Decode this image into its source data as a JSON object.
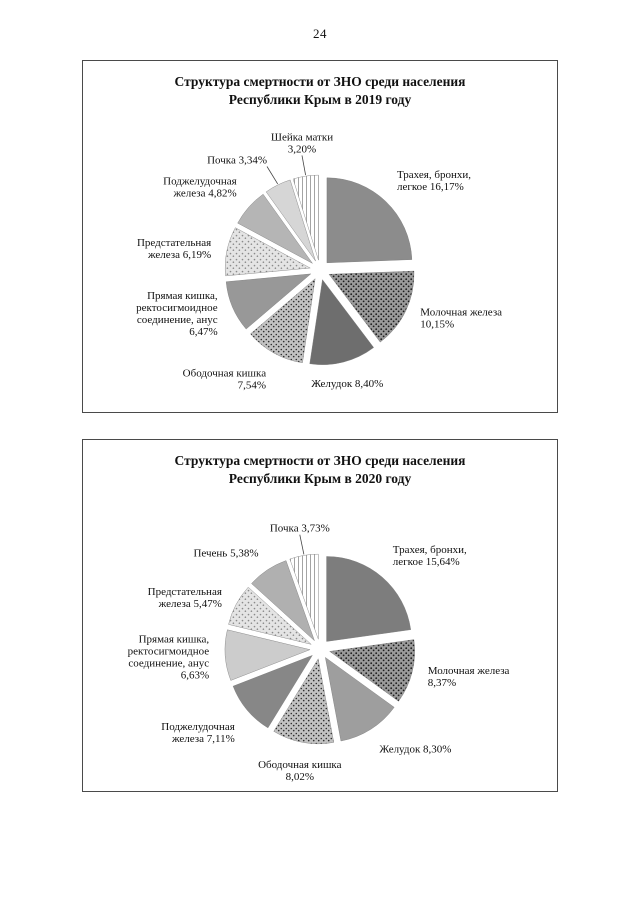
{
  "page": {
    "number": "24"
  },
  "chart_data": [
    {
      "type": "pie",
      "title": "Структура смертности от ЗНО среди населения Республики Крым в 2019 году",
      "title_lines": [
        "Структура смертности от ЗНО среди населения",
        "Республики Крым в 2019 году"
      ],
      "layout": {
        "start_angle_deg": 0,
        "clockwise": true,
        "exploded": true,
        "labels": "outside",
        "legend": "none",
        "values_are_percent": true
      },
      "slices": [
        {
          "name": "Трахея, бронхи, легкое",
          "value": 16.17,
          "percent_label": "16,17%",
          "label_lines": [
            "Трахея, бронхи,",
            "легкое 16,17%"
          ],
          "fill": "#8c8c8c"
        },
        {
          "name": "Молочная железа",
          "value": 10.15,
          "percent_label": "10,15%",
          "label_lines": [
            "Молочная железа",
            "10,15%"
          ],
          "fill": "pattern:speckle-dark"
        },
        {
          "name": "Желудок",
          "value": 8.4,
          "percent_label": "8,40%",
          "label_lines": [
            "Желудок 8,40%"
          ],
          "fill": "#6e6e6e"
        },
        {
          "name": "Ободочная кишка",
          "value": 7.54,
          "percent_label": "7,54%",
          "label_lines": [
            "Ободочная кишка",
            "7,54%"
          ],
          "fill": "pattern:speckle-med"
        },
        {
          "name": "Прямая кишка, ректосигмоидное соединение, анус",
          "value": 6.47,
          "percent_label": "6,47%",
          "label_lines": [
            "Прямая кишка,",
            "ректосигмоидное",
            "соединение, анус",
            "6,47%"
          ],
          "fill": "#989898"
        },
        {
          "name": "Предстательная железа",
          "value": 6.19,
          "percent_label": "6,19%",
          "label_lines": [
            "Предстательная",
            "железа 6,19%"
          ],
          "fill": "pattern:speckle-light"
        },
        {
          "name": "Поджелудочная железа",
          "value": 4.82,
          "percent_label": "4,82%",
          "label_lines": [
            "Поджелудочная",
            "железа 4,82%"
          ],
          "fill": "#b5b5b5"
        },
        {
          "name": "Почка",
          "value": 3.34,
          "percent_label": "3,34%",
          "label_lines": [
            "Почка 3,34%"
          ],
          "fill": "#d6d6d6"
        },
        {
          "name": "Шейка матки",
          "value": 3.2,
          "percent_label": "3,20%",
          "label_lines": [
            "Шейка матки",
            "3,20%"
          ],
          "fill": "pattern:stripes"
        }
      ]
    },
    {
      "type": "pie",
      "title": "Структура смертности от ЗНО среди населения Республики Крым в 2020 году",
      "title_lines": [
        "Структура смертности от ЗНО среди населения",
        "Республики Крым в 2020 году"
      ],
      "layout": {
        "start_angle_deg": 0,
        "clockwise": true,
        "exploded": true,
        "labels": "outside",
        "legend": "none",
        "values_are_percent": true
      },
      "slices": [
        {
          "name": "Трахея, бронхи, легкое",
          "value": 15.64,
          "percent_label": "15,64%",
          "label_lines": [
            "Трахея, бронхи,",
            "легкое 15,64%"
          ],
          "fill": "#7d7d7d"
        },
        {
          "name": "Молочная железа",
          "value": 8.37,
          "percent_label": "8,37%",
          "label_lines": [
            "Молочная железа",
            "8,37%"
          ],
          "fill": "pattern:speckle-dark"
        },
        {
          "name": "Желудок",
          "value": 8.3,
          "percent_label": "8,30%",
          "label_lines": [
            "Желудок 8,30%"
          ],
          "fill": "#9e9e9e"
        },
        {
          "name": "Ободочная кишка",
          "value": 8.02,
          "percent_label": "8,02%",
          "label_lines": [
            "Ободочная кишка",
            "8,02%"
          ],
          "fill": "pattern:speckle-med"
        },
        {
          "name": "Поджелудочная железа",
          "value": 7.11,
          "percent_label": "7,11%",
          "label_lines": [
            "Поджелудочная",
            "железа 7,11%"
          ],
          "fill": "#878787"
        },
        {
          "name": "Прямая кишка, ректосигмоидное соединение, анус",
          "value": 6.63,
          "percent_label": "6,63%",
          "label_lines": [
            "Прямая кишка,",
            "ректосигмоидное",
            "соединение, анус",
            "6,63%"
          ],
          "fill": "#cccccc"
        },
        {
          "name": "Предстательная железа",
          "value": 5.47,
          "percent_label": "5,47%",
          "label_lines": [
            "Предстательная",
            "железа 5,47%"
          ],
          "fill": "pattern:speckle-light"
        },
        {
          "name": "Печень",
          "value": 5.38,
          "percent_label": "5,38%",
          "label_lines": [
            "Печень 5,38%"
          ],
          "fill": "#b0b0b0"
        },
        {
          "name": "Почка",
          "value": 3.73,
          "percent_label": "3,73%",
          "label_lines": [
            "Почка 3,73%"
          ],
          "fill": "pattern:stripes"
        }
      ]
    }
  ]
}
